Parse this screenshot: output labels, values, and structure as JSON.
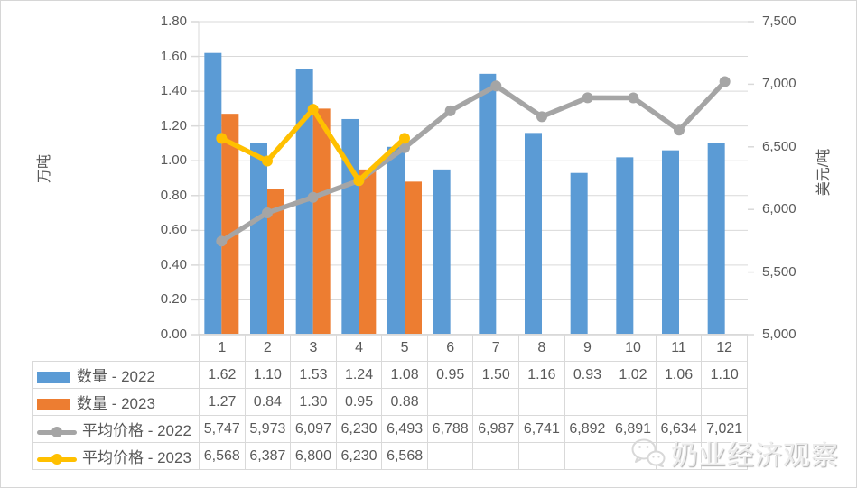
{
  "chart_data": {
    "type": "combo-bar-line",
    "categories": [
      "1",
      "2",
      "3",
      "4",
      "5",
      "6",
      "7",
      "8",
      "9",
      "10",
      "11",
      "12"
    ],
    "series": [
      {
        "name": "数量 - 2022",
        "type": "bar",
        "axis": "left",
        "color": "#5B9BD5",
        "values": [
          1.62,
          1.1,
          1.53,
          1.24,
          1.08,
          0.95,
          1.5,
          1.16,
          0.93,
          1.02,
          1.06,
          1.1
        ],
        "display": [
          "1.62",
          "1.10",
          "1.53",
          "1.24",
          "1.08",
          "0.95",
          "1.50",
          "1.16",
          "0.93",
          "1.02",
          "1.06",
          "1.10"
        ]
      },
      {
        "name": "数量 - 2023",
        "type": "bar",
        "axis": "left",
        "color": "#ED7D31",
        "values": [
          1.27,
          0.84,
          1.3,
          0.95,
          0.88,
          null,
          null,
          null,
          null,
          null,
          null,
          null
        ],
        "display": [
          "1.27",
          "0.84",
          "1.30",
          "0.95",
          "0.88",
          "",
          "",
          "",
          "",
          "",
          "",
          ""
        ]
      },
      {
        "name": "平均价格 - 2022",
        "type": "line",
        "axis": "right",
        "color": "#A5A5A5",
        "values": [
          5747,
          5973,
          6097,
          6230,
          6493,
          6788,
          6987,
          6741,
          6892,
          6891,
          6634,
          7021
        ],
        "display": [
          "5,747",
          "5,973",
          "6,097",
          "6,230",
          "6,493",
          "6,788",
          "6,987",
          "6,741",
          "6,892",
          "6,891",
          "6,634",
          "7,021"
        ]
      },
      {
        "name": "平均价格 - 2023",
        "type": "line",
        "axis": "right",
        "color": "#FFC000",
        "values": [
          6568,
          6387,
          6800,
          6230,
          6568,
          null,
          null,
          null,
          null,
          null,
          null,
          null
        ],
        "display": [
          "6,568",
          "6,387",
          "6,800",
          "6,230",
          "6,568",
          "",
          "",
          "",
          "",
          "",
          "",
          ""
        ]
      }
    ],
    "left_axis": {
      "title": "万吨",
      "min": 0,
      "max": 1.8,
      "ticks": [
        "1.80",
        "1.60",
        "1.40",
        "1.20",
        "1.00",
        "0.80",
        "0.60",
        "0.40",
        "0.20",
        "0.00"
      ]
    },
    "right_axis": {
      "title": "美元/吨",
      "min": 5000,
      "max": 7500,
      "ticks": [
        "7,500",
        "7,000",
        "6,500",
        "6,000",
        "5,500",
        "5,000"
      ]
    },
    "grid": true,
    "legend_position": "table-left",
    "colors": {
      "gridline": "#d9d9d9",
      "axis_line": "#bfbfbf",
      "text": "#595959",
      "table_border": "#d9d9d9"
    }
  },
  "watermark": {
    "text": "奶业经济观察",
    "icon": "wechat-icon"
  }
}
